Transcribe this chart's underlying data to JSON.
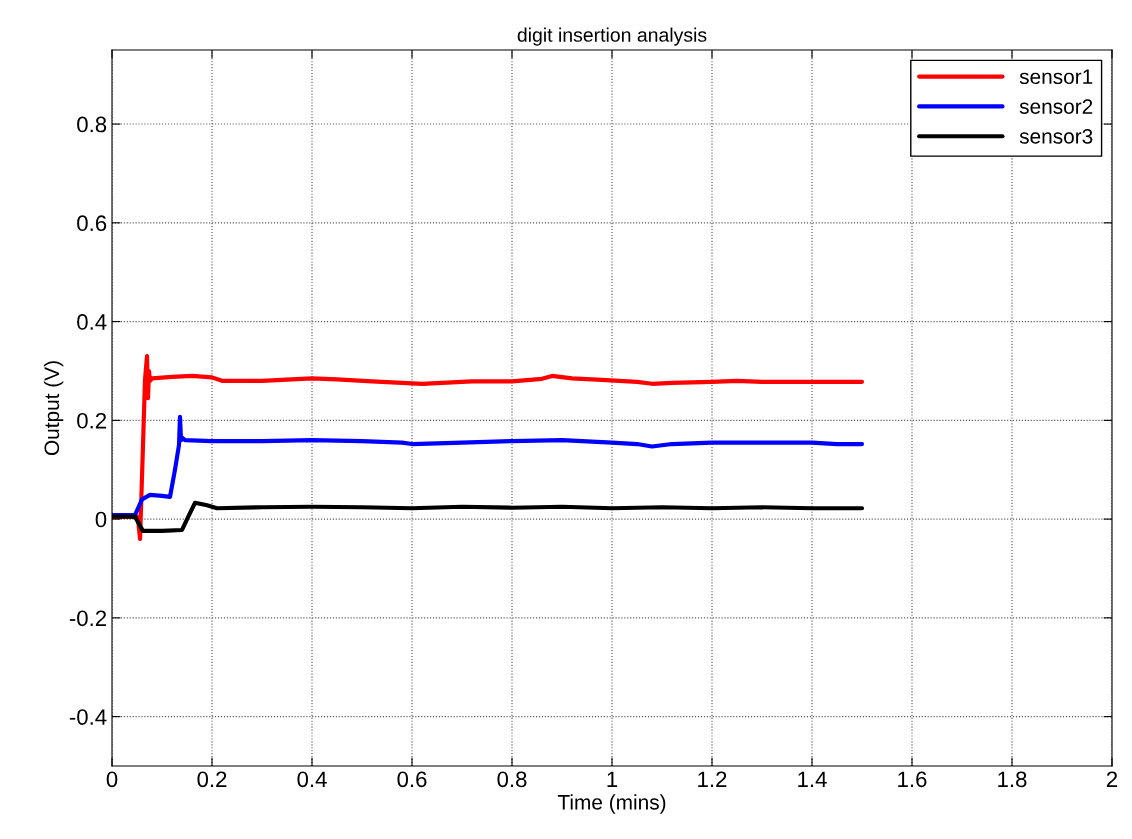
{
  "chart_data": {
    "type": "line",
    "title": "digit insertion analysis",
    "xlabel": "Time (mins)",
    "ylabel": "Output (V)",
    "xlim": [
      0,
      2
    ],
    "xticks": [
      0,
      0.2,
      0.4,
      0.6,
      0.8,
      1,
      1.2,
      1.4,
      1.6,
      1.8,
      2
    ],
    "ylim": [
      -0.5,
      0.95
    ],
    "yticks": [
      -0.4,
      -0.2,
      0,
      0.2,
      0.4,
      0.6,
      0.8
    ],
    "grid": true,
    "legend": "top right",
    "line_style": "solid",
    "marker": "none",
    "series": [
      {
        "name": "sensor1",
        "color": "#ff0000",
        "x": [
          0,
          0.05,
          0.052,
          0.056,
          0.058,
          0.062,
          0.066,
          0.07,
          0.072,
          0.074,
          0.076,
          0.08,
          0.12,
          0.16,
          0.2,
          0.22,
          0.3,
          0.4,
          0.45,
          0.52,
          0.58,
          0.62,
          0.66,
          0.72,
          0.8,
          0.86,
          0.88,
          0.92,
          0.98,
          1.05,
          1.08,
          1.12,
          1.2,
          1.25,
          1.3,
          1.4,
          1.5
        ],
        "values": [
          0.005,
          0.005,
          0,
          -0.04,
          0.02,
          0.15,
          0.282,
          0.33,
          0.245,
          0.3,
          0.28,
          0.285,
          0.288,
          0.29,
          0.287,
          0.28,
          0.28,
          0.285,
          0.283,
          0.279,
          0.276,
          0.274,
          0.276,
          0.279,
          0.279,
          0.284,
          0.29,
          0.285,
          0.282,
          0.278,
          0.274,
          0.276,
          0.278,
          0.28,
          0.278,
          0.278,
          0.278
        ]
      },
      {
        "name": "sensor2",
        "color": "#0000ff",
        "x": [
          0,
          0.046,
          0.06,
          0.076,
          0.1,
          0.116,
          0.126,
          0.134,
          0.136,
          0.138,
          0.14,
          0.146,
          0.2,
          0.3,
          0.4,
          0.5,
          0.58,
          0.6,
          0.7,
          0.8,
          0.9,
          1,
          1.05,
          1.08,
          1.12,
          1.2,
          1.3,
          1.4,
          1.45,
          1.5
        ],
        "values": [
          0.008,
          0.008,
          0.04,
          0.049,
          0.047,
          0.045,
          0.1,
          0.15,
          0.207,
          0.16,
          0.165,
          0.16,
          0.158,
          0.158,
          0.16,
          0.158,
          0.155,
          0.152,
          0.155,
          0.158,
          0.16,
          0.155,
          0.152,
          0.147,
          0.152,
          0.155,
          0.155,
          0.155,
          0.152,
          0.152
        ]
      },
      {
        "name": "sensor3",
        "color": "#000000",
        "x": [
          0,
          0.046,
          0.062,
          0.1,
          0.14,
          0.155,
          0.166,
          0.19,
          0.21,
          0.3,
          0.4,
          0.5,
          0.6,
          0.7,
          0.8,
          0.9,
          1,
          1.1,
          1.2,
          1.3,
          1.4,
          1.5
        ],
        "values": [
          0.005,
          0.005,
          -0.024,
          -0.024,
          -0.022,
          0.01,
          0.033,
          0.028,
          0.022,
          0.024,
          0.025,
          0.024,
          0.022,
          0.025,
          0.023,
          0.025,
          0.022,
          0.024,
          0.022,
          0.024,
          0.022,
          0.022
        ]
      }
    ]
  }
}
